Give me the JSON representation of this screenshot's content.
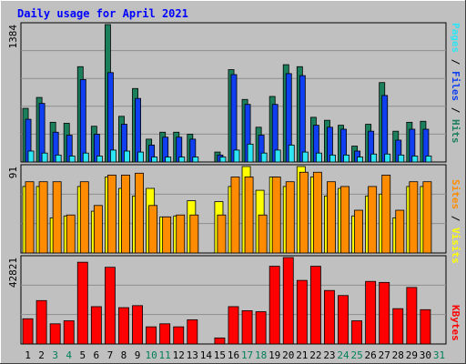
{
  "title": "Daily usage for April 2021",
  "colors": {
    "frame_bg": "#c0c0c0",
    "plot_bg": "#c0c0c0",
    "gridline": "#8e8e8e",
    "hits": "#1c7f5c",
    "files": "#0f3ff0",
    "pages": "#2ce5f5",
    "visits": "#ffff00",
    "sites": "#ff8c00",
    "kbytes": "#ff0000",
    "weekday_tick": "#000000",
    "weekend_tick": "#00805a"
  },
  "chart_data": [
    {
      "type": "bar",
      "name": "top-panel",
      "x": [
        "1",
        "2",
        "3",
        "4",
        "5",
        "6",
        "7",
        "8",
        "9",
        "10",
        "11",
        "12",
        "13",
        "14",
        "15",
        "16",
        "17",
        "18",
        "19",
        "20",
        "21",
        "22",
        "23",
        "24",
        "25",
        "26",
        "27",
        "28",
        "29",
        "30",
        "31"
      ],
      "y_max_label": "1384",
      "ylim": [
        0,
        1384
      ],
      "legend": [
        "Pages",
        "Files",
        "Hits"
      ],
      "series": [
        {
          "name": "Hits",
          "values": [
            540,
            650,
            400,
            390,
            960,
            360,
            1384,
            460,
            740,
            230,
            300,
            300,
            280,
            0,
            100,
            930,
            630,
            350,
            660,
            980,
            960,
            450,
            420,
            370,
            160,
            380,
            800,
            310,
            400,
            410,
            0
          ]
        },
        {
          "name": "Files",
          "values": [
            430,
            590,
            300,
            270,
            830,
            280,
            900,
            380,
            640,
            170,
            250,
            250,
            230,
            0,
            70,
            880,
            580,
            270,
            580,
            890,
            870,
            370,
            350,
            330,
            110,
            310,
            670,
            220,
            330,
            330,
            0
          ]
        },
        {
          "name": "Pages",
          "values": [
            110,
            90,
            70,
            60,
            90,
            60,
            120,
            110,
            100,
            50,
            50,
            50,
            50,
            0,
            50,
            120,
            180,
            90,
            120,
            170,
            100,
            90,
            70,
            70,
            50,
            80,
            80,
            70,
            60,
            60,
            0
          ]
        }
      ]
    },
    {
      "type": "bar",
      "name": "middle-panel",
      "x": [
        "1",
        "2",
        "3",
        "4",
        "5",
        "6",
        "7",
        "8",
        "9",
        "10",
        "11",
        "12",
        "13",
        "14",
        "15",
        "16",
        "17",
        "18",
        "19",
        "20",
        "21",
        "22",
        "23",
        "24",
        "25",
        "26",
        "27",
        "28",
        "29",
        "30",
        "31"
      ],
      "y_max_label": "91",
      "ylim": [
        0,
        91
      ],
      "legend": [
        "Sites",
        "Visits"
      ],
      "series": [
        {
          "name": "Visits",
          "values": [
            70,
            70,
            37,
            39,
            70,
            44,
            80,
            68,
            60,
            68,
            38,
            39,
            55,
            0,
            54,
            70,
            91,
            66,
            80,
            70,
            91,
            80,
            60,
            68,
            39,
            60,
            62,
            37,
            70,
            70,
            0
          ]
        },
        {
          "name": "Sites",
          "values": [
            75,
            75,
            75,
            40,
            75,
            50,
            82,
            82,
            84,
            50,
            38,
            40,
            40,
            0,
            40,
            80,
            80,
            40,
            80,
            75,
            85,
            85,
            75,
            70,
            45,
            70,
            82,
            45,
            75,
            75,
            0
          ]
        }
      ]
    },
    {
      "type": "bar",
      "name": "bottom-panel",
      "x": [
        "1",
        "2",
        "3",
        "4",
        "5",
        "6",
        "7",
        "8",
        "9",
        "10",
        "11",
        "12",
        "13",
        "14",
        "15",
        "16",
        "17",
        "18",
        "19",
        "20",
        "21",
        "22",
        "23",
        "24",
        "25",
        "26",
        "27",
        "28",
        "29",
        "30",
        "31"
      ],
      "y_max_label": "42821",
      "ylim": [
        0,
        42821
      ],
      "legend": [
        "KBytes"
      ],
      "series": [
        {
          "name": "KBytes",
          "values": [
            12500,
            21500,
            10000,
            11500,
            40500,
            18500,
            38000,
            18000,
            19000,
            8500,
            10000,
            8500,
            12000,
            0,
            3000,
            18500,
            16500,
            16000,
            38500,
            42821,
            31500,
            38500,
            26500,
            24000,
            11500,
            31000,
            30500,
            17500,
            28000,
            17000,
            0
          ]
        }
      ]
    }
  ],
  "x_ticks": [
    "1",
    "2",
    "3",
    "4",
    "5",
    "6",
    "7",
    "8",
    "9",
    "10",
    "11",
    "12",
    "13",
    "14",
    "15",
    "16",
    "17",
    "18",
    "19",
    "20",
    "21",
    "22",
    "23",
    "24",
    "25",
    "26",
    "27",
    "28",
    "29",
    "30",
    "31"
  ],
  "weekend_days": [
    3,
    4,
    10,
    11,
    17,
    18,
    24,
    25,
    31
  ],
  "side_labels": {
    "top": [
      "Pages",
      "/",
      "Files",
      "/",
      "Hits"
    ],
    "middle": [
      "Sites",
      "/",
      "Visits"
    ],
    "bottom": [
      "KBytes"
    ]
  }
}
